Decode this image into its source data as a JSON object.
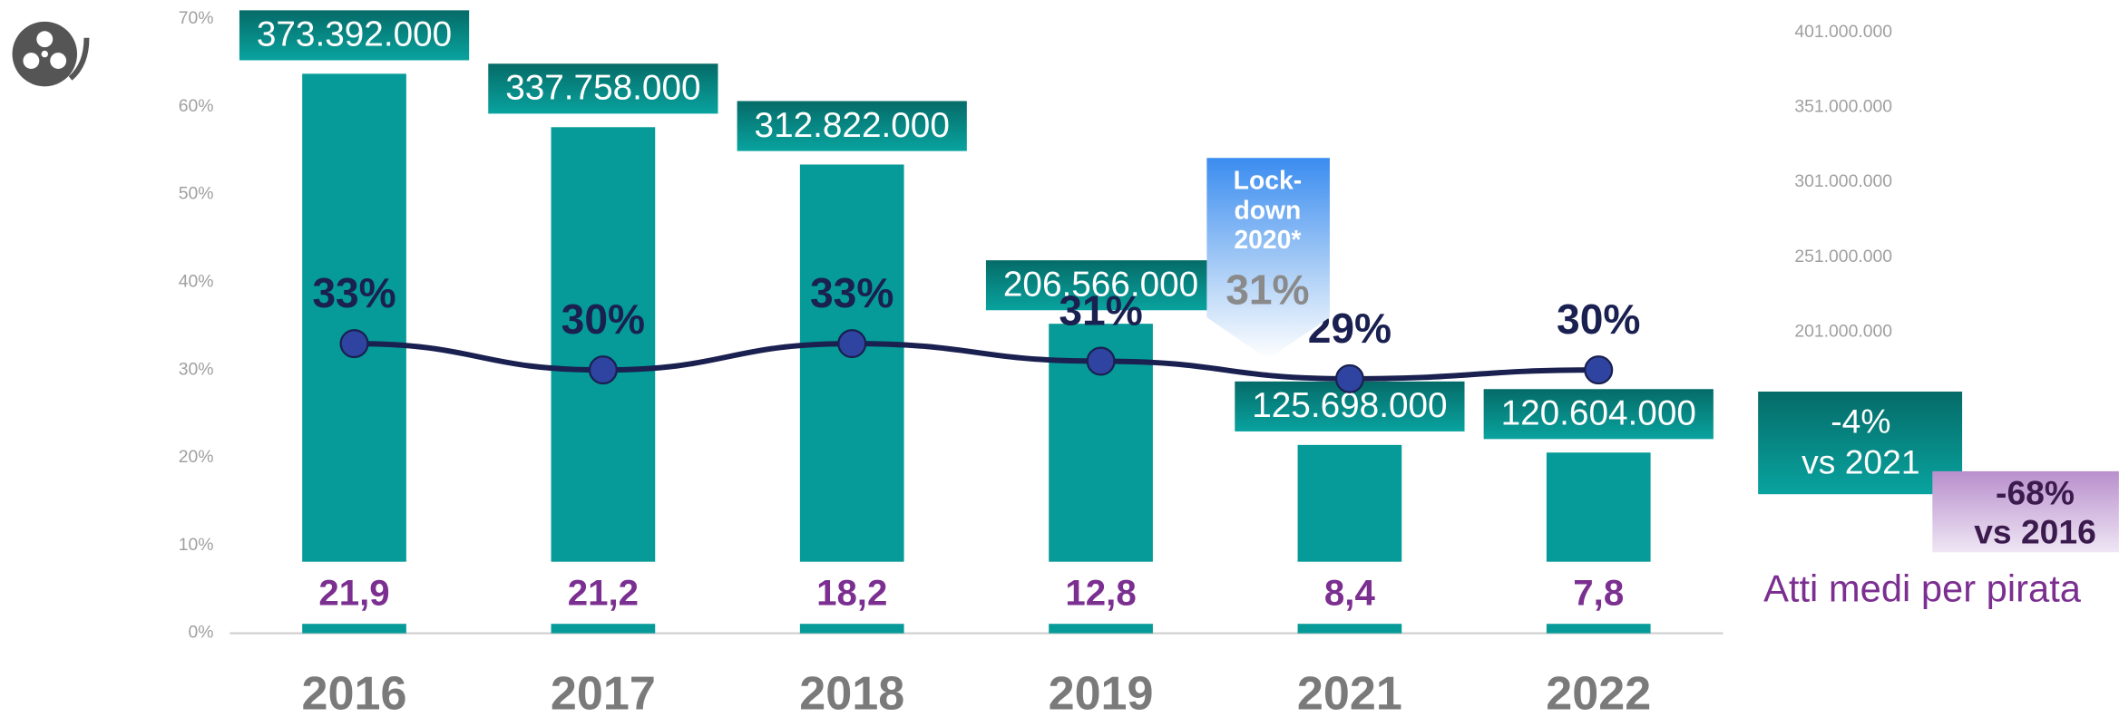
{
  "chart_data": {
    "type": "bar",
    "categories": [
      "2016",
      "2017",
      "2018",
      "2019",
      "2021",
      "2022"
    ],
    "series": [
      {
        "type": "bar",
        "axis": "y2",
        "color": "#069b98",
        "values": [
          373392000,
          337758000,
          312822000,
          206566000,
          125698000,
          120604000
        ],
        "value_labels": [
          "373.392.000",
          "337.758.000",
          "312.822.000",
          "206.566.000",
          "125.698.000",
          "120.604.000"
        ]
      },
      {
        "type": "line",
        "color": "#1a2050",
        "marker_color": "#2e44a0",
        "values": [
          33,
          30,
          33,
          31,
          29,
          30
        ],
        "value_labels": [
          "33%",
          "30%",
          "33%",
          "31%",
          "29%",
          "30%"
        ]
      },
      {
        "type": "text",
        "name": "Atti medi per pirata",
        "color": "#7b2f90",
        "values": [
          21.9,
          21.2,
          18.2,
          12.8,
          8.4,
          7.8
        ],
        "value_labels": [
          "21,9",
          "21,2",
          "18,2",
          "12,8",
          "8,4",
          "7,8"
        ]
      }
    ],
    "ylim": [
      0,
      70
    ],
    "yticks": [
      {
        "value": 0,
        "label": "0%"
      },
      {
        "value": 10,
        "label": "10%"
      },
      {
        "value": 20,
        "label": "20%"
      },
      {
        "value": 30,
        "label": "30%"
      },
      {
        "value": 40,
        "label": "40%"
      },
      {
        "value": 50,
        "label": "50%"
      },
      {
        "value": 60,
        "label": "60%"
      },
      {
        "value": 70,
        "label": "70%"
      }
    ],
    "y2lim": [
      0,
      410000000
    ],
    "y2ticks": [
      {
        "value": 201000000,
        "label": "201.000.000"
      },
      {
        "value": 251000000,
        "label": "251.000.000"
      },
      {
        "value": 301000000,
        "label": "301.000.000"
      },
      {
        "value": 351000000,
        "label": "351.000.000"
      },
      {
        "value": 401000000,
        "label": "401.000.000"
      }
    ],
    "annotations": {
      "lockdown": {
        "lines": [
          "Lock-",
          "down",
          "2020*"
        ],
        "value_label": "31%"
      },
      "vs2021": {
        "lines": [
          "-4%",
          "vs 2021"
        ]
      },
      "vs2016": {
        "lines": [
          "-68%",
          "vs 2016"
        ]
      }
    }
  }
}
